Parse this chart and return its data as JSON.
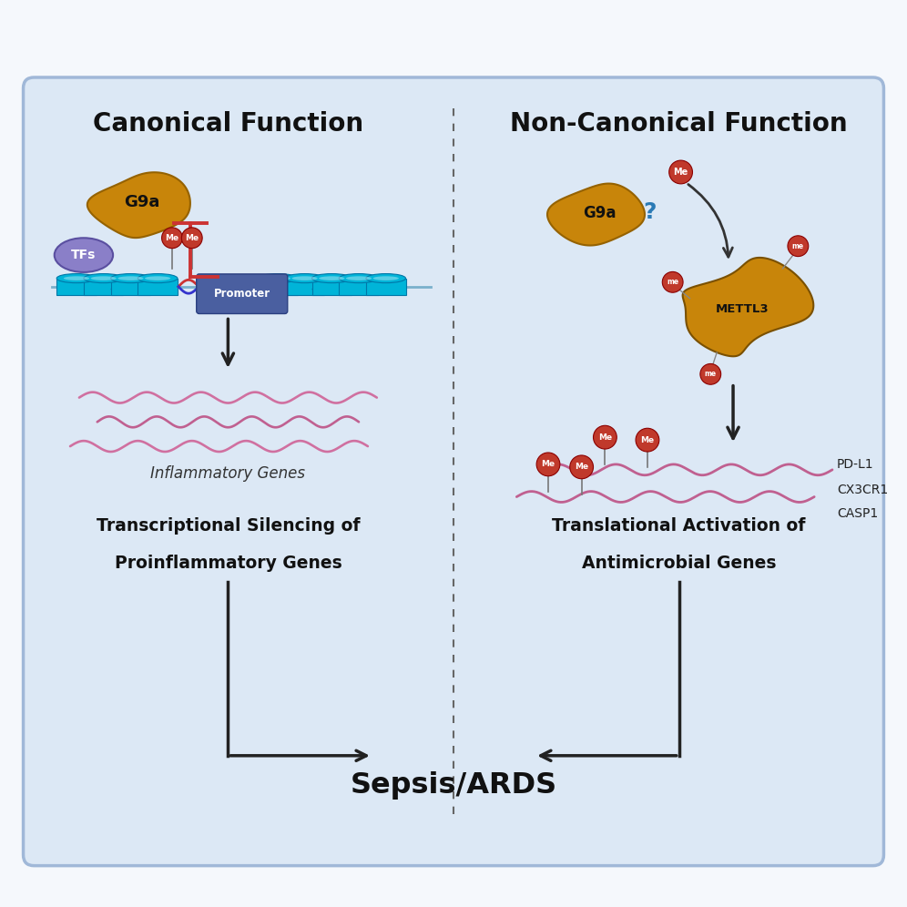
{
  "bg_color": "#dce8f5",
  "outer_bg": "#f0f5fc",
  "panel_bg": "#dce8f5",
  "title_left": "Canonical Function",
  "title_right": "Non-Canonical Function",
  "bottom_label": "Sepsis/ARDS",
  "left_subtitle1": "Transcriptional Silencing of",
  "left_subtitle2": "Proinflammatory Genes",
  "right_subtitle1": "Translational Activation of",
  "right_subtitle2": "Antimicrobial Genes",
  "infl_genes_label": "Inflammatory Genes",
  "gene_labels": [
    "PD-L1",
    "CX3CR1",
    "CASP1"
  ],
  "g9a_color": "#c8850a",
  "mettl3_color": "#c8850a",
  "tfs_color": "#8a7fc8",
  "promoter_color": "#4a5fa0",
  "nucleosome_color": "#00b4d8",
  "nucleosome_dark": "#0077a8",
  "me_color": "#c0392b",
  "dna_color1": "#cc3333",
  "dna_color2": "#3333cc",
  "inhibit_arrow_color": "#cc3333",
  "arrow_color": "#222222",
  "question_color": "#2a7ab5",
  "mrna_color": "#d070a0",
  "mrna2_color": "#c06090"
}
